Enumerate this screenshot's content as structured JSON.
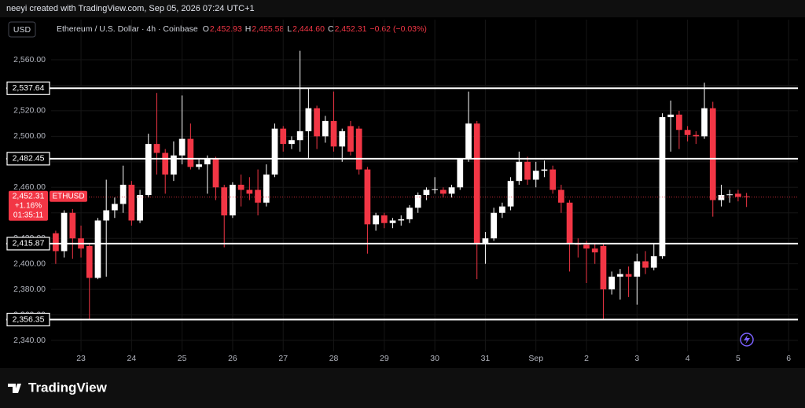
{
  "header": "neeyi created with TradingView.com, Sep 05, 2026 07:24 UTC+1",
  "currency_button": "USD",
  "brand": "TradingView",
  "chart_data": {
    "type": "candlestick",
    "symbol_description": "Ethereum / U.S. Dollar · 4h · Coinbase",
    "ohlc_legend": [
      {
        "label": "O",
        "value": "2,452.93"
      },
      {
        "label": "H",
        "value": "2,455.58"
      },
      {
        "label": "L",
        "value": "2,444.60"
      },
      {
        "label": "C",
        "value": "2,452.31"
      }
    ],
    "change_text": "−0.62 (−0.03%)",
    "up_color": "#ffffff",
    "down_color": "#f23645",
    "grid": true,
    "x": [
      -3,
      -2,
      -1,
      0,
      1,
      2,
      3,
      4,
      5,
      6,
      7,
      8,
      9,
      10,
      11,
      12,
      13,
      14,
      15,
      16,
      17,
      18,
      19,
      20,
      21,
      22,
      23,
      24,
      25,
      26,
      27,
      28,
      29,
      30,
      31,
      32,
      33,
      34,
      35,
      36,
      37,
      38,
      39,
      40,
      41,
      42,
      43,
      44,
      45,
      46,
      47,
      48,
      49,
      50,
      51,
      52,
      53,
      54,
      55,
      56,
      57,
      58,
      59,
      60,
      61,
      62,
      63,
      64,
      65,
      66,
      67,
      68,
      69,
      70,
      71,
      72,
      73,
      74,
      75,
      76,
      77,
      78,
      79
    ],
    "open": [
      2424,
      2410,
      2440,
      2420,
      2414,
      2389,
      2434,
      2442,
      2447,
      2462,
      2434,
      2454,
      2494,
      2487,
      2470,
      2485,
      2498,
      2476,
      2478,
      2482,
      2460,
      2438,
      2462,
      2458,
      2458,
      2448,
      2470,
      2506,
      2494,
      2497,
      2504,
      2522,
      2500,
      2512,
      2492,
      2508,
      2506,
      2474,
      2431,
      2438,
      2432,
      2434,
      2435,
      2444,
      2454,
      2458,
      2458,
      2455,
      2460,
      2482,
      2510,
      2416,
      2420,
      2440,
      2445,
      2465,
      2480,
      2466,
      2473,
      2474,
      2458,
      2448,
      2416,
      2415,
      2412,
      2414,
      2380,
      2390,
      2392,
      2390,
      2402,
      2397,
      2406,
      2515,
      2517,
      2505,
      2501,
      2500,
      2522,
      2450,
      2454,
      2455,
      2452.93
    ],
    "high": [
      2426,
      2442,
      2443,
      2430,
      2416,
      2436,
      2466,
      2452,
      2477,
      2465,
      2458,
      2502,
      2534,
      2490,
      2496,
      2532,
      2510,
      2482,
      2485,
      2484,
      2462,
      2464,
      2470,
      2468,
      2474,
      2478,
      2510,
      2508,
      2500,
      2567,
      2538,
      2524,
      2516,
      2535,
      2506,
      2512,
      2508,
      2476,
      2440,
      2440,
      2436,
      2438,
      2446,
      2456,
      2460,
      2468,
      2460,
      2462,
      2483,
      2535,
      2512,
      2425,
      2444,
      2448,
      2468,
      2488,
      2484,
      2480,
      2481,
      2477,
      2462,
      2450,
      2420,
      2418,
      2416,
      2416,
      2394,
      2396,
      2398,
      2408,
      2410,
      2416,
      2518,
      2528,
      2520,
      2508,
      2504,
      2542,
      2527,
      2462,
      2458,
      2458,
      2455.58
    ],
    "low": [
      2400,
      2405,
      2404,
      2405,
      2356,
      2388,
      2390,
      2436,
      2440,
      2430,
      2432,
      2452,
      2470,
      2455,
      2465,
      2478,
      2474,
      2474,
      2455,
      2450,
      2413,
      2436,
      2445,
      2450,
      2438,
      2445,
      2468,
      2488,
      2490,
      2488,
      2483,
      2490,
      2495,
      2488,
      2480,
      2485,
      2470,
      2408,
      2426,
      2428,
      2428,
      2430,
      2432,
      2440,
      2450,
      2455,
      2452,
      2452,
      2458,
      2480,
      2388,
      2400,
      2418,
      2436,
      2442,
      2462,
      2462,
      2460,
      2468,
      2455,
      2440,
      2394,
      2405,
      2385,
      2400,
      2356,
      2376,
      2372,
      2374,
      2368,
      2392,
      2395,
      2404,
      2488,
      2490,
      2496,
      2494,
      2498,
      2437,
      2445,
      2448,
      2449,
      2444.6
    ],
    "close": [
      2410,
      2440,
      2420,
      2412,
      2389,
      2434,
      2442,
      2447,
      2462,
      2434,
      2454,
      2494,
      2487,
      2470,
      2485,
      2498,
      2476,
      2478,
      2482,
      2460,
      2438,
      2462,
      2458,
      2455,
      2448,
      2470,
      2506,
      2494,
      2497,
      2504,
      2522,
      2500,
      2512,
      2492,
      2504,
      2488,
      2474,
      2431,
      2438,
      2432,
      2434,
      2435,
      2444,
      2454,
      2458,
      2458.5,
      2455,
      2460,
      2482,
      2510,
      2416,
      2420,
      2440,
      2445,
      2465,
      2480,
      2466,
      2473,
      2474,
      2458,
      2448,
      2416,
      2415,
      2412,
      2409,
      2380,
      2390,
      2392,
      2390,
      2402,
      2397,
      2406,
      2515,
      2517,
      2505,
      2501,
      2500,
      2522,
      2450,
      2454,
      2454.5,
      2452.5,
      2452.31
    ],
    "xlim": [
      -3.55,
      85.1
    ],
    "xticks": [
      {
        "value": 0,
        "label": "23"
      },
      {
        "value": 6,
        "label": "24"
      },
      {
        "value": 12,
        "label": "25"
      },
      {
        "value": 18,
        "label": "26"
      },
      {
        "value": 24,
        "label": "27"
      },
      {
        "value": 30,
        "label": "28"
      },
      {
        "value": 36,
        "label": "29"
      },
      {
        "value": 42,
        "label": "30"
      },
      {
        "value": 48,
        "label": "31"
      },
      {
        "value": 54,
        "label": "Sep"
      },
      {
        "value": 60,
        "label": "2"
      },
      {
        "value": 66,
        "label": "3"
      },
      {
        "value": 72,
        "label": "4"
      },
      {
        "value": 78,
        "label": "5"
      },
      {
        "value": 84,
        "label": "6"
      }
    ],
    "ylim": [
      2331.4,
      2579.1
    ],
    "yticks": [
      {
        "value": 2340,
        "label": "2,340.00"
      },
      {
        "value": 2360,
        "label": "2,360.00"
      },
      {
        "value": 2380,
        "label": "2,380.00"
      },
      {
        "value": 2400,
        "label": "2,400.00"
      },
      {
        "value": 2420,
        "label": "2,420.00"
      },
      {
        "value": 2440,
        "label": "2,440.00"
      },
      {
        "value": 2460,
        "label": "2,460.00"
      },
      {
        "value": 2480,
        "label": "2,480.00"
      },
      {
        "value": 2500,
        "label": "2,500.00"
      },
      {
        "value": 2520,
        "label": "2,520.00"
      },
      {
        "value": 2540,
        "label": "2,540.00"
      },
      {
        "value": 2560,
        "label": "2,560.00"
      }
    ],
    "levels": [
      {
        "value": 2537.64,
        "label": "2,537.64"
      },
      {
        "value": 2482.45,
        "label": "2,482.45"
      },
      {
        "value": 2415.87,
        "label": "2,415.87"
      },
      {
        "value": 2356.35,
        "label": "2,356.35"
      }
    ],
    "last_price": {
      "value": 2452.31,
      "label": "2,452.31",
      "symbol": "ETHUSD",
      "change": "+1.16%",
      "countdown": "01:35:11"
    }
  }
}
